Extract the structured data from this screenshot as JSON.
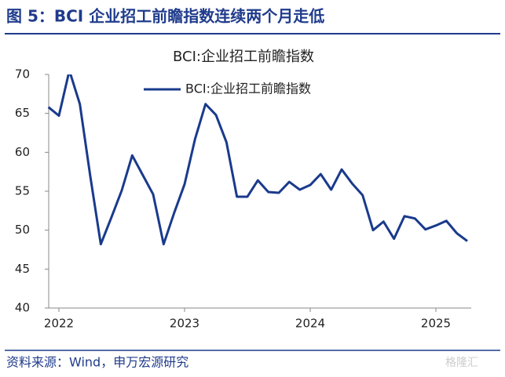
{
  "header": {
    "title": "图 5：BCI 企业招工前瞻指数连续两个月走低"
  },
  "chart_data": {
    "type": "line",
    "title": "BCI:企业招工前瞻指数",
    "categories": [
      null,
      "2022",
      null,
      null,
      null,
      null,
      null,
      null,
      null,
      null,
      null,
      null,
      null,
      "2023",
      null,
      null,
      null,
      null,
      null,
      null,
      null,
      null,
      null,
      null,
      null,
      "2024",
      null,
      null,
      null,
      null,
      null,
      null,
      null,
      null,
      null,
      null,
      null,
      "2025",
      null,
      null,
      null
    ],
    "series": [
      {
        "name": "BCI:企业招工前瞻指数",
        "color": "#1a3a8c",
        "values": [
          65.8,
          64.7,
          70.5,
          66.2,
          56.9,
          48.2,
          51.6,
          55.1,
          59.6,
          57.1,
          54.6,
          48.2,
          52.2,
          55.9,
          61.7,
          66.2,
          64.8,
          61.3,
          54.3,
          54.3,
          56.4,
          54.9,
          54.8,
          56.2,
          55.2,
          55.8,
          57.2,
          55.2,
          57.8,
          56.0,
          54.5,
          50.0,
          51.1,
          48.9,
          51.8,
          51.5,
          50.1,
          50.6,
          51.2,
          49.6,
          48.6
        ]
      }
    ],
    "ylim": [
      40,
      70
    ],
    "yticks": [
      40,
      45,
      50,
      55,
      60,
      65,
      70
    ],
    "grid": false,
    "legend": "top"
  },
  "footer": {
    "source": "资料来源：Wind，申万宏源研究",
    "watermark": "格隆汇"
  }
}
